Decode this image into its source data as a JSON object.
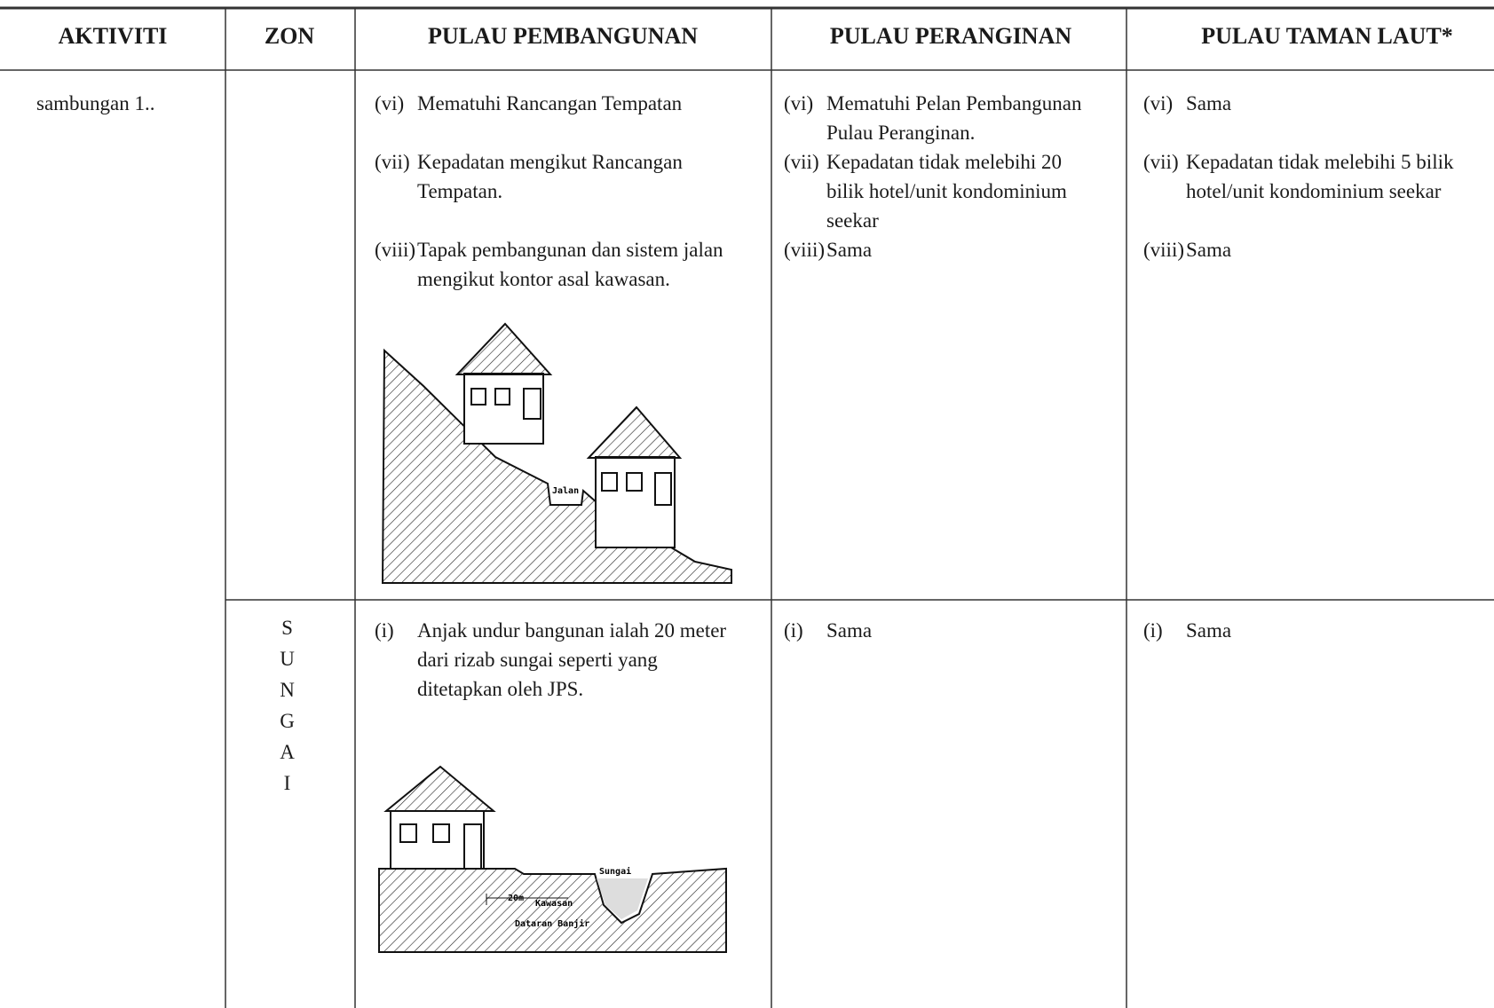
{
  "header": {
    "columns": [
      "AKTIVITI",
      "ZON",
      "PULAU PEMBANGUNAN",
      "PULAU PERANGINAN",
      "PULAU TAMAN LAUT*"
    ]
  },
  "rows": [
    {
      "aktiviti": "sambungan 1..",
      "pembangunan": [
        {
          "marker": "(vi)",
          "lines": [
            "Mematuhi Rancangan Tempatan"
          ]
        },
        {
          "marker": "(vii)",
          "lines": [
            "Kepadatan mengikut Rancangan",
            "Tempatan."
          ]
        },
        {
          "marker": "(viii)",
          "lines": [
            "Tapak pembangunan dan sistem jalan",
            "mengikut kontor asal kawasan."
          ]
        }
      ],
      "peranginan": [
        {
          "marker": "(vi)",
          "lines": [
            "Mematuhi Pelan Pembangunan",
            "Pulau Peranginan."
          ]
        },
        {
          "marker": "(vii)",
          "lines": [
            "Kepadatan tidak melebihi 20",
            "bilik hotel/unit kondominium",
            "seekar"
          ]
        },
        {
          "marker": "(viii)",
          "lines": [
            "Sama"
          ]
        }
      ],
      "taman_laut": [
        {
          "marker": "(vi)",
          "lines": [
            "Sama"
          ]
        },
        {
          "marker": "(vii)",
          "lines": [
            "Kepadatan tidak melebihi 5 bilik",
            "hotel/unit kondominium seekar"
          ]
        },
        {
          "marker": "(viii)",
          "lines": [
            "Sama"
          ]
        }
      ],
      "diagram_labels": [
        "Jalan"
      ]
    },
    {
      "zon": "SUNGAI",
      "pembangunan": [
        {
          "marker": "(i)",
          "lines": [
            "Anjak undur bangunan ialah 20 meter",
            "dari rizab sungai seperti yang",
            "ditetapkan oleh JPS."
          ]
        }
      ],
      "peranginan": [
        {
          "marker": "(i)",
          "lines": [
            "Sama"
          ]
        }
      ],
      "taman_laut": [
        {
          "marker": "(i)",
          "lines": [
            "Sama"
          ]
        }
      ],
      "diagram_labels": [
        "Sungai",
        "20m",
        "Kawasan",
        "Dataran Banjir"
      ]
    }
  ]
}
